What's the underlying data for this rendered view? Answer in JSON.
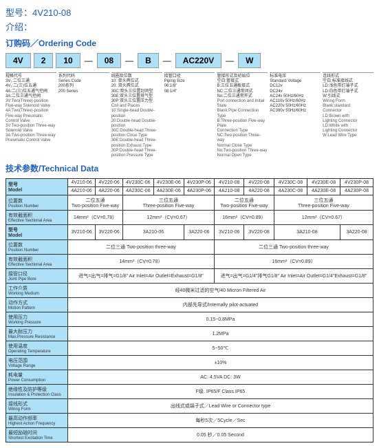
{
  "header": {
    "model_label": "型号：",
    "model_value": "4V210-08",
    "intro_label": "介绍："
  },
  "ordering": {
    "title": "订购码／Ordering Code",
    "codes": [
      "4V",
      "2",
      "10",
      "08",
      "B",
      "AC220V",
      "W"
    ],
    "cols": [
      {
        "cn": "规格代号\n3V₁:二位三通\n4V₁:二(三)位五通\n4A:二(三)位五通气控阀\n3A:二位三通气控阀",
        "en": "3V:Two(Three)-position\nFive-way Solenoid Valve\n4A:Two(Three)-position\nFive-way Pneumatic\nControl Valve\n3V:Two-position Three-way\nSolenoid Valve\n3A:Two-position Three-way\nPneumatic Control Valve"
      },
      {
        "cn": "系列代码\nSeries Code\n200系列\n200 Series",
        "en": ""
      },
      {
        "cn": "线圈及位数\n10: 单头两位式\n20: 双头两位式\n30C:双头三位置封闭型\n30E:双头三位置排气型\n30P:双头三位置压力型",
        "en": "Coil and Places\n10:Single-head Double-position\n20:Double-head Double-position\n30C:Double-head Three-position Close Type\n30E:Double-head Three-position Exhaust Type\n30P:Double-head Three-position Pressure Type"
      },
      {
        "cn": "接管口径\nPiping Size\n06:1/8\"\n08:1/4\"",
        "en": ""
      },
      {
        "cn": "管接形式及初始位\n空白:管接式\nB:三位五通板接式\nNC:二位三通常闭式\nNo:二位三通常开式",
        "en": "Port connection and Initial State\nBlank:Pipe Connection Type\nB:Three-position Five-way Plate\nConnection Type\nNC:Two-position Three-way\nNormal Close Type\nNo:Two-position Three-way\nNormal Open Type"
      },
      {
        "cn": "标准电压\nStandard Voltage\nDC12v\nDC24v\nAC24v   50Hz/60Hz\nAC110v  50Hz/60Hz\nAC220v  50Hz/60Hz\nAC380v  50Hz/60Hz",
        "en": ""
      },
      {
        "cn": "连线形式\n空白:标准接线式\nLD:浅色带灯端子式\nLD:白色带灯端子式\nW:引线式",
        "en": "Wiring Form\nBlank:standard\nConnector\nLD:Brown with\nLighting Connector\nLD:White with\nLighting Connector\nW:Lead Wire Type"
      }
    ]
  },
  "tech": {
    "title": "技术参数/Technical Data",
    "model_label_cn": "型号",
    "model_label_en": "Model",
    "row1": [
      "4V210-06",
      "4V220-06",
      "4V230C-06",
      "4V230E-06",
      "4V230P-06",
      "4V210-08",
      "4V220-08",
      "4V230C-08",
      "4V230E-08",
      "4V230P-08"
    ],
    "row2": [
      "4A210-06",
      "4A220-06",
      "4A230C-06",
      "4A230E-06",
      "4A230P-06",
      "4A210-08",
      "4A220-08",
      "4A230C-08",
      "4A230E-08",
      "4A230P-08"
    ],
    "pos": {
      "cn": "位置数",
      "en": "Position Number",
      "v1": "二位五通\nTwo-position Five-way",
      "v2": "三位五通\nThree-position Five-way",
      "v3": "二位五通\nTwo-position Five-way",
      "v4": "三位五通\nThree-position Five-way"
    },
    "area": {
      "cn": "有效截面积",
      "en": "Effective Sectional Area",
      "v1": "14mm²（CV=0.78）",
      "v2": "12mm²（CV=0.67）",
      "v3": "16mm²（CV=0.89）",
      "v4": "12mm²（CV=0.67）"
    },
    "row3": [
      "3V210-06",
      "3V220-06",
      "3A210-06",
      "3A220-06",
      "3V210-06",
      "3V220-08",
      "3A210-08",
      "3A220-08"
    ],
    "pos2": {
      "v1": "二位三通 Two-position three-way",
      "v2": "二位三通 Two-position three-way"
    },
    "area2": {
      "v1": "14mm²（CV=0.78）",
      "v2": "16mm²（CV=0.89）"
    },
    "pipe": {
      "cn": "接管口径",
      "en": "Joint Pipe Bore",
      "v1": "进气=出气=排气=G1/8\"  Air Inlet=Air Outlet=Exhaust=G1/8\"",
      "v2": "进气=出气=G1/4\"排气G1/8\" Air Inlet=Air Outlet=G1/4\"Exhaust=G1/8\""
    },
    "specs": [
      {
        "cn": "工作介质",
        "en": "Working Medium",
        "v": "经40微米过滤的空气/40 Micron Filtered Air"
      },
      {
        "cn": "动作方式",
        "en": "Motion Pattern",
        "v": "内部先导式/Internally pilot-actuated"
      },
      {
        "cn": "使用压力",
        "en": "Working Pressure",
        "v": "0.15~0.8MPa"
      },
      {
        "cn": "最大耐压力",
        "en": "Max.Pressure Resistance",
        "v": "1.2MPa"
      },
      {
        "cn": "使用温度",
        "en": "Operating Temperature",
        "v": "5~50℃"
      },
      {
        "cn": "电压范围",
        "en": "Voltage Range",
        "v": "±10%"
      },
      {
        "cn": "耗电量",
        "en": "Power Consumption",
        "v": "AC: 4.5VA    DC: 3W"
      },
      {
        "cn": "绝缘性及防护等级",
        "en": "Insulation & Protection Class",
        "v": "F级. IP65/F Class.IP65"
      },
      {
        "cn": "接线形式",
        "en": "Wiring Form",
        "v": "出线式或端子式／Lead Wire or Connector type"
      },
      {
        "cn": "最高动作频率",
        "en": "Highest Action Frequency",
        "v": "每秒5次／5Cycle／Sec"
      },
      {
        "cn": "最短励磁时间",
        "en": "Shortest Excitation Time",
        "v": "0.05 秒／0.05 Second"
      }
    ]
  }
}
